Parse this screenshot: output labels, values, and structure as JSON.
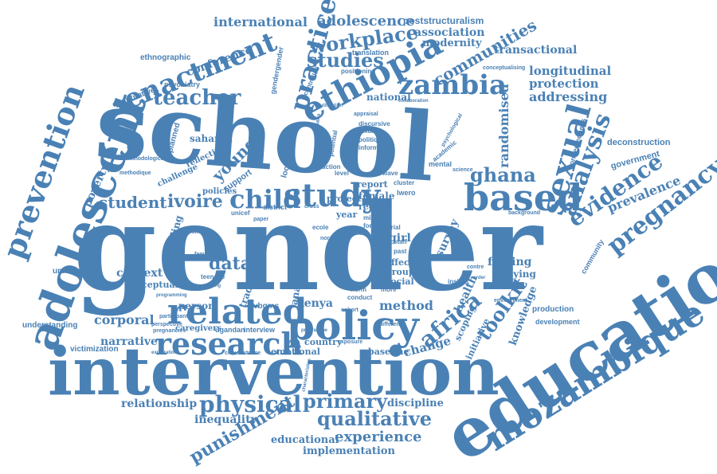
{
  "colors": {
    "word": "#4a81b5",
    "background": "#ffffff"
  },
  "words": [
    {
      "text": "gender"
    },
    {
      "text": "school"
    },
    {
      "text": "intervention"
    },
    {
      "text": "education"
    },
    {
      "text": "adolescent"
    },
    {
      "text": "policy"
    },
    {
      "text": "mozambique"
    },
    {
      "text": "prevention"
    },
    {
      "text": "related"
    },
    {
      "text": "research"
    },
    {
      "text": "based"
    },
    {
      "text": "study"
    },
    {
      "text": "ethiopia"
    },
    {
      "text": "zambia"
    },
    {
      "text": "sexual"
    },
    {
      "text": "analysis"
    },
    {
      "text": "evidence"
    },
    {
      "text": "pregnancy"
    },
    {
      "text": "enactment"
    },
    {
      "text": "teacher"
    },
    {
      "text": "practice"
    },
    {
      "text": "workplace"
    },
    {
      "text": "studies"
    },
    {
      "text": "physical"
    },
    {
      "text": "primary"
    },
    {
      "text": "qualitative"
    },
    {
      "text": "punishment"
    },
    {
      "text": "experience"
    },
    {
      "text": "child"
    },
    {
      "text": "africa"
    },
    {
      "text": "toolkit"
    },
    {
      "text": "ghana"
    },
    {
      "text": "international"
    },
    {
      "text": "adolescence"
    },
    {
      "text": "communities"
    },
    {
      "text": "poststructuralism"
    },
    {
      "text": "association"
    },
    {
      "text": "modernity"
    },
    {
      "text": "transactional"
    },
    {
      "text": "longitudinal"
    },
    {
      "text": "protection"
    },
    {
      "text": "addressing"
    },
    {
      "text": "randomised"
    },
    {
      "text": "prevalence"
    },
    {
      "text": "government"
    },
    {
      "text": "deconstruction"
    },
    {
      "text": "conference"
    },
    {
      "text": "young"
    },
    {
      "text": "student"
    },
    {
      "text": "ivoire"
    },
    {
      "text": "data"
    },
    {
      "text": "poverty"
    },
    {
      "text": "context"
    },
    {
      "text": "conceptual"
    },
    {
      "text": "corporal"
    },
    {
      "text": "narrative"
    },
    {
      "text": "relationship"
    },
    {
      "text": "inequality"
    },
    {
      "text": "educational"
    },
    {
      "text": "implementation"
    },
    {
      "text": "discipline"
    },
    {
      "text": "method"
    },
    {
      "text": "kenya"
    },
    {
      "text": "change"
    },
    {
      "text": "finding"
    },
    {
      "text": "bullying"
    },
    {
      "text": "survey"
    },
    {
      "text": "girl"
    },
    {
      "text": "good"
    },
    {
      "text": "country"
    },
    {
      "text": "baseline"
    },
    {
      "text": "emotional"
    },
    {
      "text": "person"
    },
    {
      "text": "caregivers"
    },
    {
      "text": "victimization"
    },
    {
      "text": "understanding"
    },
    {
      "text": "unintended"
    },
    {
      "text": "quantitative"
    },
    {
      "text": "ethnographic"
    },
    {
      "text": "psychiatry"
    },
    {
      "text": "unplanned"
    },
    {
      "text": "saharan"
    },
    {
      "text": "reflection"
    },
    {
      "text": "challenge"
    },
    {
      "text": "policies"
    },
    {
      "text": "schooling"
    },
    {
      "text": "tradition"
    },
    {
      "text": "analyse"
    },
    {
      "text": "woman"
    },
    {
      "text": "project"
    },
    {
      "text": "report"
    },
    {
      "text": "female"
    },
    {
      "text": "reduce"
    },
    {
      "text": "year"
    },
    {
      "text": "effect"
    },
    {
      "text": "group"
    },
    {
      "text": "social"
    },
    {
      "text": "health"
    },
    {
      "text": "scoping"
    },
    {
      "text": "initiative"
    },
    {
      "text": "knowledge"
    },
    {
      "text": "production"
    },
    {
      "text": "development"
    },
    {
      "text": "community"
    },
    {
      "text": "connectedness"
    },
    {
      "text": "vbgms"
    },
    {
      "text": "ugandan"
    },
    {
      "text": "interview"
    },
    {
      "text": "support"
    },
    {
      "text": "lockdown"
    },
    {
      "text": "district"
    },
    {
      "text": "national"
    },
    {
      "text": "translation"
    },
    {
      "text": "positioning"
    },
    {
      "text": "gendergender"
    },
    {
      "text": "conceptualising"
    },
    {
      "text": "methodological"
    },
    {
      "text": "methodique"
    },
    {
      "text": "feminist"
    },
    {
      "text": "lusaka"
    },
    {
      "text": "lutilisation"
    },
    {
      "text": "mixed"
    },
    {
      "text": "form"
    },
    {
      "text": "trial"
    },
    {
      "text": "staff"
    },
    {
      "text": "past"
    },
    {
      "text": "wave"
    },
    {
      "text": "cluster"
    },
    {
      "text": "lwero"
    },
    {
      "text": "academic"
    },
    {
      "text": "mental"
    },
    {
      "text": "science"
    },
    {
      "text": "insight"
    },
    {
      "text": "norm"
    },
    {
      "text": "conduct"
    },
    {
      "text": "peer"
    },
    {
      "text": "cohort"
    },
    {
      "text": "more"
    },
    {
      "text": "different"
    },
    {
      "text": "framework"
    },
    {
      "text": "exposure"
    },
    {
      "text": "circumstance"
    },
    {
      "text": "work"
    },
    {
      "text": "term"
    },
    {
      "text": "families"
    },
    {
      "text": "teenage"
    },
    {
      "text": "making"
    },
    {
      "text": "unicef"
    },
    {
      "text": "paper"
    },
    {
      "text": "cross"
    },
    {
      "text": "environment"
    },
    {
      "text": "background"
    },
    {
      "text": "participant"
    },
    {
      "text": "perspective"
    },
    {
      "text": "pregnancies"
    },
    {
      "text": "programming"
    },
    {
      "text": "exploration"
    },
    {
      "text": "programme"
    },
    {
      "text": "characteristics"
    },
    {
      "text": "pathway"
    },
    {
      "text": "collaboration"
    },
    {
      "text": "appraisal"
    },
    {
      "text": "sexuality"
    },
    {
      "text": "discursive"
    },
    {
      "text": "politique"
    },
    {
      "text": "inform"
    },
    {
      "text": "action"
    },
    {
      "text": "level"
    },
    {
      "text": "potential"
    },
    {
      "text": "controlled"
    },
    {
      "text": "process"
    },
    {
      "text": "psychological"
    },
    {
      "text": "contre"
    },
    {
      "text": "order"
    },
    {
      "text": "collection"
    },
    {
      "text": "nord"
    },
    {
      "text": "ecole"
    },
    {
      "text": "cote"
    }
  ]
}
